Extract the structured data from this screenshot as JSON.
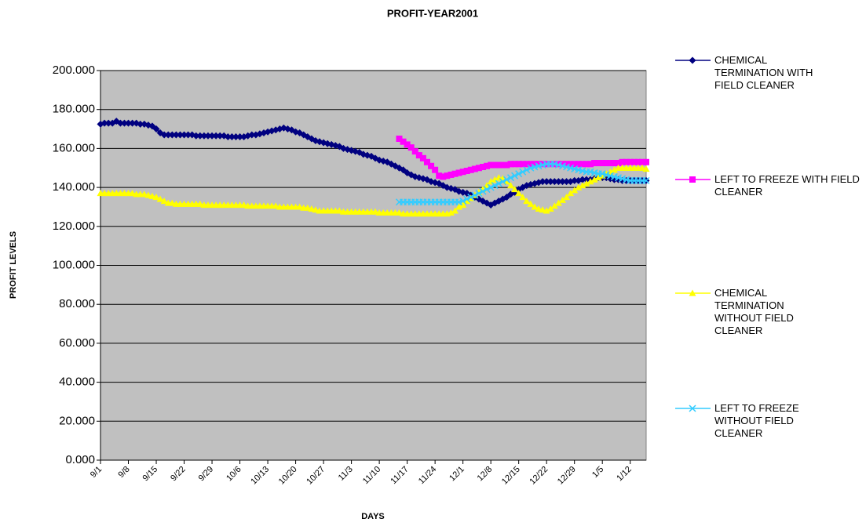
{
  "chart_data": {
    "type": "line",
    "title": "PROFIT-YEAR2001",
    "x_label": "DAYS",
    "y_label": "PROFIT LEVELS",
    "plot_background": "#c0c0c0",
    "grid": true,
    "legend": "right",
    "ylim": [
      0,
      200
    ],
    "yticks": [
      {
        "value": 0,
        "label": "0.000"
      },
      {
        "value": 20,
        "label": "20.000"
      },
      {
        "value": 40,
        "label": "40.000"
      },
      {
        "value": 60,
        "label": "60.000"
      },
      {
        "value": 80,
        "label": "80.000"
      },
      {
        "value": 100,
        "label": "100.000"
      },
      {
        "value": 120,
        "label": "120.000"
      },
      {
        "value": 140,
        "label": "140.000"
      },
      {
        "value": 160,
        "label": "160.000"
      },
      {
        "value": 180,
        "label": "180.000"
      },
      {
        "value": 200,
        "label": "200.000"
      }
    ],
    "categories": [
      "9/1",
      null,
      null,
      null,
      null,
      null,
      null,
      "9/8",
      null,
      null,
      null,
      null,
      null,
      null,
      "9/15",
      null,
      null,
      null,
      null,
      null,
      null,
      "9/22",
      null,
      null,
      null,
      null,
      null,
      null,
      "9/29",
      null,
      null,
      null,
      null,
      null,
      null,
      "10/6",
      null,
      null,
      null,
      null,
      null,
      null,
      "10/13",
      null,
      null,
      null,
      null,
      null,
      null,
      "10/20",
      null,
      null,
      null,
      null,
      null,
      null,
      "10/27",
      null,
      null,
      null,
      null,
      null,
      null,
      "11/3",
      null,
      null,
      null,
      null,
      null,
      null,
      "11/10",
      null,
      null,
      null,
      null,
      null,
      null,
      "11/17",
      null,
      null,
      null,
      null,
      null,
      null,
      "11/24",
      null,
      null,
      null,
      null,
      null,
      null,
      "12/1",
      null,
      null,
      null,
      null,
      null,
      null,
      "12/8",
      null,
      null,
      null,
      null,
      null,
      null,
      "12/15",
      null,
      null,
      null,
      null,
      null,
      null,
      "12/22",
      null,
      null,
      null,
      null,
      null,
      null,
      "12/29",
      null,
      null,
      null,
      null,
      null,
      null,
      "1/5",
      null,
      null,
      null,
      null,
      null,
      null,
      "1/12",
      null,
      null,
      null,
      null
    ],
    "series": [
      {
        "name": "CHEMICAL TERMINATION WITH FIELD CLEANER",
        "color": "#000080",
        "marker": "diamond",
        "values": [
          172.5,
          173,
          173,
          173,
          174,
          173,
          173,
          173,
          173,
          173,
          172.5,
          172.5,
          172,
          171.5,
          170,
          168,
          167,
          167,
          167,
          167,
          167,
          167,
          167,
          167,
          166.5,
          166.5,
          166.5,
          166.5,
          166.5,
          166.5,
          166.5,
          166.5,
          166,
          166,
          166,
          166,
          166,
          166.5,
          167,
          167,
          167.5,
          168,
          168.5,
          169,
          169.5,
          170,
          170.5,
          170,
          169.5,
          168.5,
          168,
          167,
          166,
          165,
          164,
          163.5,
          163,
          162.5,
          162,
          161.5,
          161,
          160,
          159.5,
          159,
          158.5,
          158,
          157,
          156.5,
          156,
          155,
          154,
          153.5,
          153,
          152,
          151,
          150,
          149,
          147.5,
          146.5,
          145.5,
          145,
          144.5,
          144,
          143,
          142.5,
          142,
          141,
          140,
          139.5,
          139,
          138,
          137.5,
          137,
          136,
          135,
          134,
          133,
          132,
          131,
          132,
          133,
          134,
          135,
          136.5,
          137.5,
          139,
          140,
          141,
          141.5,
          142,
          142.5,
          143,
          143,
          143,
          143,
          143,
          143,
          143,
          143,
          143.5,
          143.5,
          144,
          144,
          144,
          144.5,
          145,
          145,
          145,
          144.5,
          144,
          144,
          143.5,
          143.5,
          143.5,
          143.5,
          143.5,
          143.5,
          143.5
        ]
      },
      {
        "name": "LEFT TO FREEZE WITH FIELD CLEANER",
        "color": "#ff00ff",
        "marker": "square",
        "values": [
          null,
          null,
          null,
          null,
          null,
          null,
          null,
          null,
          null,
          null,
          null,
          null,
          null,
          null,
          null,
          null,
          null,
          null,
          null,
          null,
          null,
          null,
          null,
          null,
          null,
          null,
          null,
          null,
          null,
          null,
          null,
          null,
          null,
          null,
          null,
          null,
          null,
          null,
          null,
          null,
          null,
          null,
          null,
          null,
          null,
          null,
          null,
          null,
          null,
          null,
          null,
          null,
          null,
          null,
          null,
          null,
          null,
          null,
          null,
          null,
          null,
          null,
          null,
          null,
          null,
          null,
          null,
          null,
          null,
          null,
          null,
          null,
          null,
          null,
          null,
          165,
          163.5,
          162,
          160.5,
          158.5,
          156.5,
          155,
          153,
          151,
          149,
          146,
          145.5,
          146,
          146.5,
          147,
          147.5,
          148,
          148.5,
          149,
          149.5,
          150,
          150.5,
          151,
          151.5,
          151.5,
          151.5,
          151.5,
          151.5,
          152,
          152,
          152,
          152,
          152,
          152,
          152,
          152,
          152,
          152,
          152,
          152,
          152,
          152,
          152,
          152,
          152,
          152,
          152,
          152,
          152,
          152.5,
          152.5,
          152.5,
          152.5,
          152.5,
          152.5,
          152.5,
          153,
          153,
          153,
          153,
          153,
          153,
          153
        ]
      },
      {
        "name": "CHEMICAL TERMINATION WITHOUT FIELD CLEANER",
        "color": "#ffff00",
        "marker": "triangle",
        "values": [
          137,
          137,
          137,
          137,
          137,
          137,
          137,
          137,
          137,
          136.5,
          136.5,
          136.5,
          136,
          135.5,
          135,
          134,
          133,
          132,
          132,
          131.5,
          131.5,
          131.5,
          131.5,
          131.5,
          131.5,
          131.5,
          131,
          131,
          131,
          131,
          131,
          131,
          131,
          131,
          131,
          131,
          131,
          130.5,
          130.5,
          130.5,
          130.5,
          130.5,
          130.5,
          130.5,
          130.5,
          130,
          130,
          130,
          130,
          130,
          130,
          129.5,
          129.5,
          129,
          128.5,
          128,
          128,
          128,
          128,
          128,
          128,
          127.5,
          127.5,
          127.5,
          127.5,
          127.5,
          127.5,
          127.5,
          127.5,
          127.5,
          127,
          127,
          127,
          127,
          127,
          127,
          126.5,
          126.5,
          126.5,
          126.5,
          126.5,
          126.5,
          126.5,
          126.5,
          126.5,
          126.5,
          126.5,
          126.5,
          127,
          128,
          130,
          131,
          133,
          134.5,
          136,
          137.5,
          139,
          141,
          143,
          144,
          145,
          144.5,
          143,
          141,
          139,
          137,
          135,
          133,
          131.5,
          130,
          129,
          128.5,
          128,
          129,
          130.5,
          132,
          133.5,
          135,
          137,
          138.5,
          140,
          141,
          142,
          143,
          144,
          145,
          146,
          147,
          148,
          149,
          150,
          150,
          150,
          150,
          150,
          150,
          150,
          149.5
        ]
      },
      {
        "name": "LEFT TO FREEZE WITHOUT FIELD CLEANER",
        "color": "#33ccff",
        "marker": "x",
        "values": [
          null,
          null,
          null,
          null,
          null,
          null,
          null,
          null,
          null,
          null,
          null,
          null,
          null,
          null,
          null,
          null,
          null,
          null,
          null,
          null,
          null,
          null,
          null,
          null,
          null,
          null,
          null,
          null,
          null,
          null,
          null,
          null,
          null,
          null,
          null,
          null,
          null,
          null,
          null,
          null,
          null,
          null,
          null,
          null,
          null,
          null,
          null,
          null,
          null,
          null,
          null,
          null,
          null,
          null,
          null,
          null,
          null,
          null,
          null,
          null,
          null,
          null,
          null,
          null,
          null,
          null,
          null,
          null,
          null,
          null,
          null,
          null,
          null,
          null,
          null,
          132.5,
          132.5,
          132.5,
          132.5,
          132.5,
          132.5,
          132.5,
          132.5,
          132.5,
          132.5,
          132.5,
          132.5,
          132.5,
          132.5,
          132.5,
          132.5,
          133,
          134,
          135,
          136,
          137,
          138,
          139,
          140,
          141,
          142,
          143,
          144,
          145,
          146,
          147,
          148,
          149,
          150,
          150.5,
          151,
          151.5,
          152,
          152,
          152,
          151.5,
          151,
          150.5,
          150,
          149.5,
          149,
          148.5,
          148,
          148,
          147.5,
          147,
          147,
          146.5,
          146,
          145.5,
          145,
          144.5,
          144,
          143.5,
          143.5,
          143.5,
          143.5,
          143.5
        ]
      }
    ]
  }
}
